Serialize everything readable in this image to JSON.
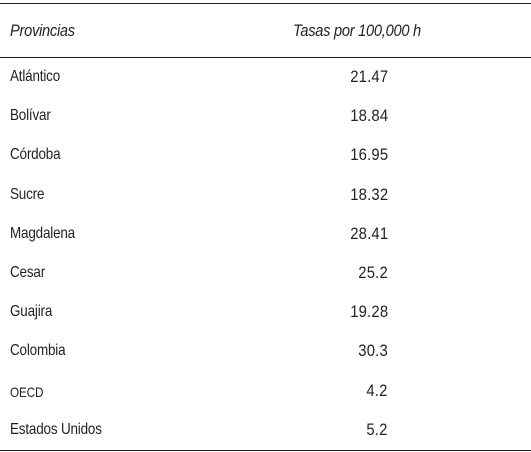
{
  "table": {
    "headers": {
      "province": "Provincias",
      "rate": "Tasas por 100,000 h"
    },
    "rows": [
      {
        "province": "Atlántico",
        "rate": "21.47"
      },
      {
        "province": "Bolívar",
        "rate": "18.84"
      },
      {
        "province": "Córdoba",
        "rate": "16.95"
      },
      {
        "province": "Sucre",
        "rate": "18.32"
      },
      {
        "province": "Magdalena",
        "rate": "28.41"
      },
      {
        "province": "Cesar",
        "rate": "25.2"
      },
      {
        "province": "Guajira",
        "rate": "19.28"
      },
      {
        "province": "Colombia",
        "rate": "30.3"
      },
      {
        "province": "OECD",
        "rate": "4.2"
      },
      {
        "province": "Estados Unidos",
        "rate": "5.2"
      }
    ]
  }
}
